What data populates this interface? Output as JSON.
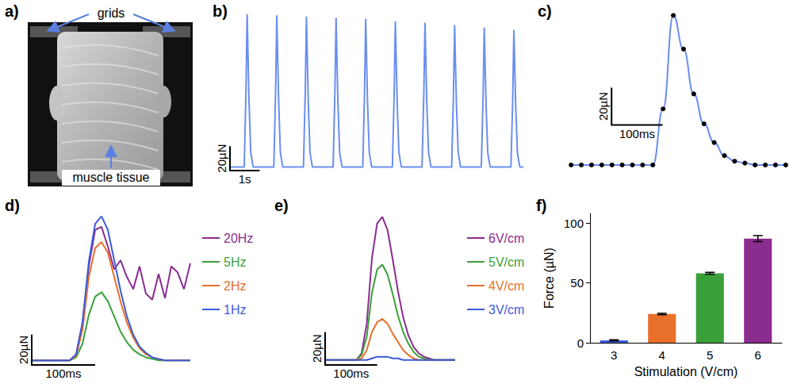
{
  "chart_data": [
    {
      "panel": "a)",
      "type": "image",
      "labels": [
        "grids",
        "muscle tissue"
      ]
    },
    {
      "panel": "b)",
      "type": "line",
      "tick_labels": false,
      "x": [
        0,
        0.48,
        0.54,
        0.58,
        0.64,
        0.7,
        0.78,
        1.48,
        1.54,
        1.58,
        1.64,
        1.7,
        1.78,
        2.48,
        2.54,
        2.58,
        2.64,
        2.7,
        2.78,
        3.48,
        3.54,
        3.58,
        3.64,
        3.7,
        3.78,
        4.48,
        4.54,
        4.58,
        4.64,
        4.7,
        4.78,
        5.48,
        5.54,
        5.58,
        5.64,
        5.7,
        5.78,
        6.48,
        6.54,
        6.58,
        6.64,
        6.7,
        6.78,
        7.48,
        7.54,
        7.58,
        7.64,
        7.7,
        7.78,
        8.48,
        8.54,
        8.58,
        8.64,
        8.7,
        8.78,
        9.48,
        9.54,
        9.58,
        9.64,
        9.7,
        9.78,
        9.9
      ],
      "series": [
        {
          "color": "#6b8ff0",
          "values": [
            0,
            0,
            62,
            125,
            56,
            12,
            0,
            0,
            62,
            124,
            56,
            12,
            0,
            0,
            61,
            123,
            55,
            12,
            0,
            0,
            61,
            122,
            55,
            12,
            0,
            0,
            60,
            121,
            54,
            12,
            0,
            0,
            60,
            119,
            54,
            12,
            0,
            0,
            59,
            118,
            53,
            12,
            0,
            0,
            58,
            116,
            52,
            12,
            0,
            0,
            57,
            114,
            51,
            11,
            0,
            0,
            56,
            112,
            50,
            11,
            0,
            0
          ]
        }
      ],
      "xlim": [
        0,
        9.9
      ],
      "ylim": [
        -3,
        130
      ],
      "scale_bar": {
        "x": {
          "value": 1,
          "label": "1s"
        },
        "y": {
          "value": 20,
          "label": "20µN"
        }
      }
    },
    {
      "panel": "c)",
      "type": "line",
      "tick_labels": false,
      "marker": "circle",
      "line_style": "smooth",
      "x": [
        0,
        20,
        40,
        60,
        80,
        100,
        120,
        140,
        160,
        180,
        200,
        220,
        240,
        260,
        280,
        300,
        320,
        340,
        360,
        380,
        400,
        420
      ],
      "series": [
        {
          "color": "#6b8ff0",
          "values": [
            0,
            0,
            0,
            0,
            0,
            0,
            0,
            0,
            0,
            30,
            80,
            62,
            38,
            22,
            12,
            5,
            2,
            1,
            0,
            0,
            0,
            0
          ]
        }
      ],
      "xlim": [
        -8,
        428
      ],
      "ylim": [
        -3,
        84
      ],
      "scale_bar": {
        "x": {
          "value": 100,
          "label": "100ms"
        },
        "y": {
          "value": 20,
          "label": "20µN"
        }
      }
    },
    {
      "panel": "d)",
      "type": "line",
      "tick_labels": false,
      "legend": "right",
      "x": [
        0,
        10,
        20,
        30,
        40,
        50,
        60,
        70,
        80,
        90,
        100,
        110,
        120,
        130,
        140,
        150,
        160,
        170,
        180,
        190,
        200,
        210,
        220,
        230,
        240,
        250
      ],
      "series": [
        {
          "name": "20Hz",
          "color": "#8b2c8f",
          "values": [
            0,
            0,
            0,
            0,
            0,
            0,
            0,
            4,
            24,
            62,
            86,
            88,
            75,
            60,
            66,
            55,
            47,
            62,
            44,
            40,
            57,
            41,
            62,
            58,
            47,
            64
          ]
        },
        {
          "name": "5Hz",
          "color": "#3aa03a",
          "values": [
            0,
            0,
            0,
            0,
            0,
            0,
            0,
            2,
            11,
            30,
            42,
            45,
            39,
            29,
            19,
            12,
            7,
            4,
            2,
            1,
            0,
            0,
            0,
            0,
            0,
            0
          ]
        },
        {
          "name": "2Hz",
          "color": "#e8702a",
          "values": [
            0,
            0,
            0,
            0,
            0,
            0,
            0,
            3,
            20,
            55,
            74,
            78,
            71,
            55,
            39,
            25,
            15,
            8,
            4,
            2,
            1,
            0,
            0,
            0,
            0,
            0
          ]
        },
        {
          "name": "1Hz",
          "color": "#3b5bdb",
          "values": [
            0,
            0,
            0,
            0,
            0,
            0,
            0,
            4,
            25,
            65,
            90,
            95,
            86,
            66,
            46,
            29,
            17,
            9,
            5,
            2,
            1,
            0,
            0,
            0,
            0,
            0
          ]
        }
      ],
      "xlim": [
        0,
        250
      ],
      "ylim": [
        -3,
        100
      ],
      "scale_bar": {
        "x": {
          "value": 100,
          "label": "100ms"
        },
        "y": {
          "value": 20,
          "label": "20µN"
        }
      }
    },
    {
      "panel": "e)",
      "type": "line",
      "tick_labels": false,
      "legend": "right",
      "x": [
        0,
        10,
        20,
        30,
        40,
        50,
        60,
        70,
        80,
        90,
        100,
        110,
        120,
        130,
        140,
        150,
        160,
        170,
        180,
        190,
        200,
        210,
        220,
        230,
        240,
        250
      ],
      "series": [
        {
          "name": "6V/cm",
          "color": "#8b2c8f",
          "values": [
            0,
            0,
            0,
            0,
            0,
            0,
            0,
            4,
            22,
            62,
            83,
            87,
            79,
            61,
            42,
            26,
            15,
            8,
            4,
            2,
            1,
            0,
            0,
            0,
            0,
            0
          ]
        },
        {
          "name": "5V/cm",
          "color": "#3aa03a",
          "values": [
            0,
            0,
            0,
            0,
            0,
            0,
            0,
            3,
            14,
            41,
            55,
            58,
            52,
            40,
            27,
            17,
            10,
            5,
            2,
            1,
            0,
            0,
            0,
            0,
            0,
            0
          ]
        },
        {
          "name": "4V/cm",
          "color": "#e8702a",
          "values": [
            0,
            0,
            0,
            0,
            0,
            0,
            0,
            1,
            6,
            17,
            23,
            25,
            22,
            16,
            11,
            6,
            3,
            1,
            0,
            0,
            0,
            0,
            0,
            0,
            0,
            0
          ]
        },
        {
          "name": "3V/cm",
          "color": "#3b5bdb",
          "values": [
            0,
            0,
            0,
            0,
            0,
            0,
            0,
            0,
            0,
            1,
            2,
            2,
            2,
            1,
            1,
            0,
            0,
            0,
            0,
            0,
            0,
            0,
            0,
            0,
            0,
            0
          ]
        }
      ],
      "xlim": [
        0,
        250
      ],
      "ylim": [
        -3,
        92
      ],
      "scale_bar": {
        "x": {
          "value": 100,
          "label": "100ms"
        },
        "y": {
          "value": 20,
          "label": "20µN"
        }
      }
    },
    {
      "panel": "f)",
      "type": "bar",
      "x_label": "Stimulation (V/cm)",
      "y_label": "Force (µN)",
      "categories": [
        "3",
        "4",
        "5",
        "6"
      ],
      "values": [
        2,
        24,
        58,
        87
      ],
      "errors": [
        0.5,
        0.6,
        0.8,
        2.5
      ],
      "colors": [
        "#3b5bdb",
        "#e8702a",
        "#3aa03a",
        "#8b2c8f"
      ],
      "ylim": [
        0,
        108
      ],
      "yticks": [
        0,
        50,
        100
      ]
    }
  ]
}
